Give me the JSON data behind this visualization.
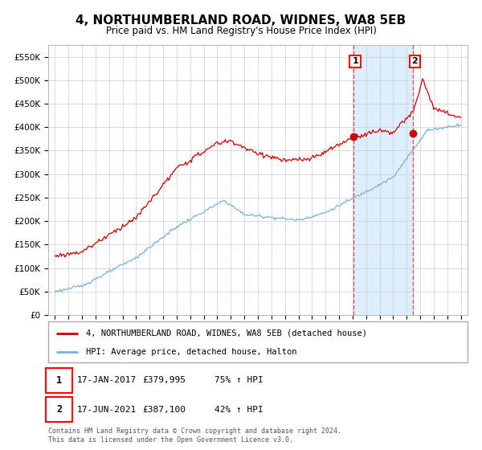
{
  "title": "4, NORTHUMBERLAND ROAD, WIDNES, WA8 5EB",
  "subtitle": "Price paid vs. HM Land Registry's House Price Index (HPI)",
  "ylim": [
    0,
    575000
  ],
  "yticks": [
    0,
    50000,
    100000,
    150000,
    200000,
    250000,
    300000,
    350000,
    400000,
    450000,
    500000,
    550000
  ],
  "ytick_labels": [
    "£0",
    "£50K",
    "£100K",
    "£150K",
    "£200K",
    "£250K",
    "£300K",
    "£350K",
    "£400K",
    "£450K",
    "£500K",
    "£550K"
  ],
  "house_color": "#cc0000",
  "hpi_color": "#7ab0d4",
  "vline_color": "#dd4444",
  "shade_color": "#ddeeff",
  "sale1_year": 2017.04,
  "sale1_value": 379995,
  "sale2_year": 2021.46,
  "sale2_value": 387100,
  "legend_line1": "4, NORTHUMBERLAND ROAD, WIDNES, WA8 5EB (detached house)",
  "legend_line2": "HPI: Average price, detached house, Halton",
  "table_row1": [
    "1",
    "17-JAN-2017",
    "£379,995",
    "75% ↑ HPI"
  ],
  "table_row2": [
    "2",
    "17-JUN-2021",
    "£387,100",
    "42% ↑ HPI"
  ],
  "footer": "Contains HM Land Registry data © Crown copyright and database right 2024.\nThis data is licensed under the Open Government Licence v3.0.",
  "background_color": "#ffffff",
  "grid_color": "#cccccc"
}
